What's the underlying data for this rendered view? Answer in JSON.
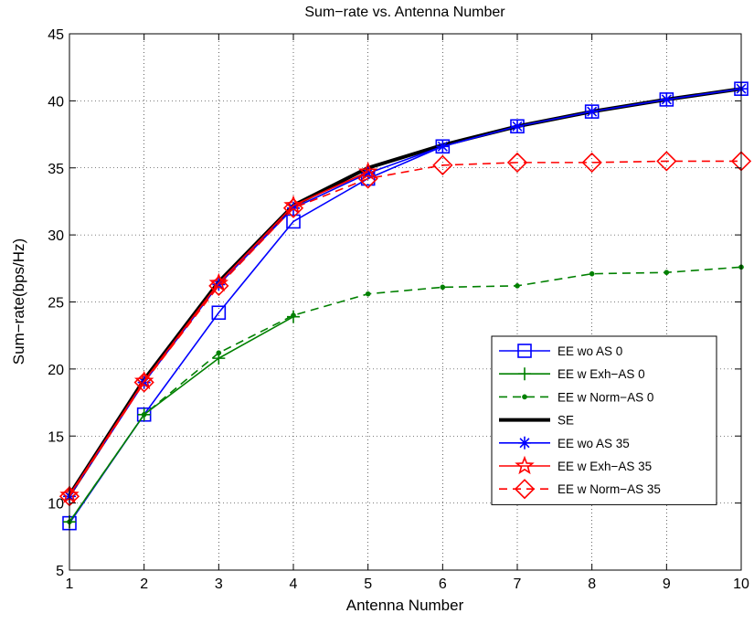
{
  "chart_data": {
    "type": "line",
    "title": "Sum−rate vs. Antenna Number",
    "xlabel": "Antenna Number",
    "ylabel": "Sum−rate(bps/Hz)",
    "xlim": [
      1,
      10
    ],
    "ylim": [
      5,
      45
    ],
    "xticks": [
      1,
      2,
      3,
      4,
      5,
      6,
      7,
      8,
      9,
      10
    ],
    "yticks": [
      5,
      10,
      15,
      20,
      25,
      30,
      35,
      40,
      45
    ],
    "xtick_labels": [
      "1",
      "2",
      "3",
      "4",
      "5",
      "6",
      "7",
      "8",
      "9",
      "10"
    ],
    "ytick_labels": [
      "5",
      "10",
      "15",
      "20",
      "25",
      "30",
      "35",
      "40",
      "45"
    ],
    "grid": true,
    "legend_position": "lower-right",
    "x": [
      1,
      2,
      3,
      4,
      5,
      6,
      7,
      8,
      9,
      10
    ],
    "series": [
      {
        "name": "EE wo AS 0",
        "color": "#0000ff",
        "line": "solid",
        "marker": "square",
        "values": [
          8.5,
          16.6,
          24.2,
          31.0,
          34.2,
          36.6,
          38.1,
          39.2,
          40.1,
          40.9
        ]
      },
      {
        "name": "EE w Exh−AS 0",
        "color": "#008000",
        "line": "solid",
        "marker": "plus",
        "values": [
          8.6,
          16.6,
          20.8,
          23.9,
          null,
          null,
          null,
          null,
          null,
          null
        ]
      },
      {
        "name": "EE w Norm−AS 0",
        "color": "#008000",
        "line": "dashed",
        "marker": "dot",
        "values": [
          8.6,
          16.6,
          21.2,
          24.0,
          25.6,
          26.1,
          26.2,
          27.1,
          27.2,
          27.6
        ]
      },
      {
        "name": "SE",
        "color": "#000000",
        "line": "solid-thick",
        "marker": "none",
        "values": [
          10.6,
          19.2,
          26.5,
          32.2,
          35.0,
          36.7,
          38.1,
          39.2,
          40.1,
          40.9
        ]
      },
      {
        "name": "EE wo AS 35",
        "color": "#0000ff",
        "line": "solid",
        "marker": "asterisk",
        "values": [
          10.5,
          19.0,
          26.3,
          32.0,
          34.6,
          36.6,
          38.1,
          39.2,
          40.1,
          40.9
        ]
      },
      {
        "name": "EE w Exh−AS 35",
        "color": "#ff0000",
        "line": "solid",
        "marker": "star",
        "values": [
          10.6,
          19.1,
          26.4,
          32.2,
          34.7,
          null,
          null,
          null,
          null,
          null
        ]
      },
      {
        "name": "EE w Norm−AS 35",
        "color": "#ff0000",
        "line": "dashed",
        "marker": "diamond",
        "values": [
          10.5,
          19.0,
          26.2,
          32.0,
          34.2,
          35.2,
          35.4,
          35.4,
          35.5,
          35.5
        ]
      }
    ]
  }
}
